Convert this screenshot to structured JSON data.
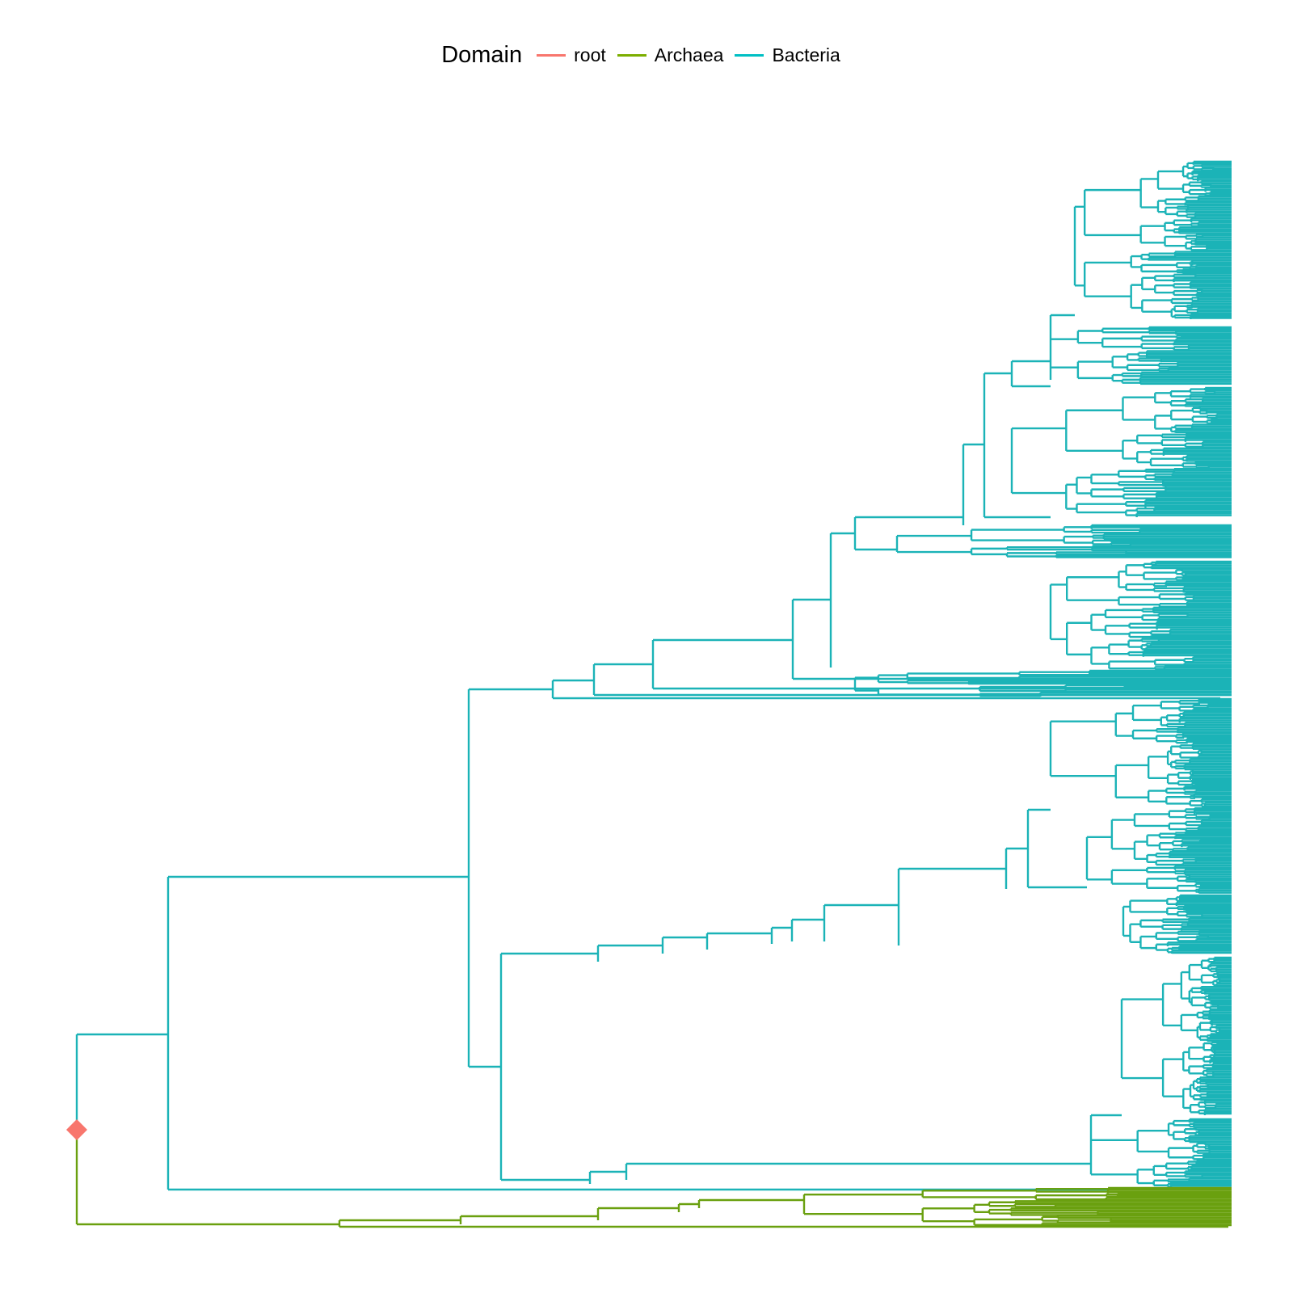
{
  "legend": {
    "title": "Domain",
    "items": [
      {
        "label": "root",
        "color": "#F8766D"
      },
      {
        "label": "Archaea",
        "color": "#7CAE00"
      },
      {
        "label": "Bacteria",
        "color": "#00BFC4"
      }
    ]
  },
  "colors": {
    "root": "#F8766D",
    "archaea": "#6AA00F",
    "bacteria": "#1BB3B7"
  }
}
